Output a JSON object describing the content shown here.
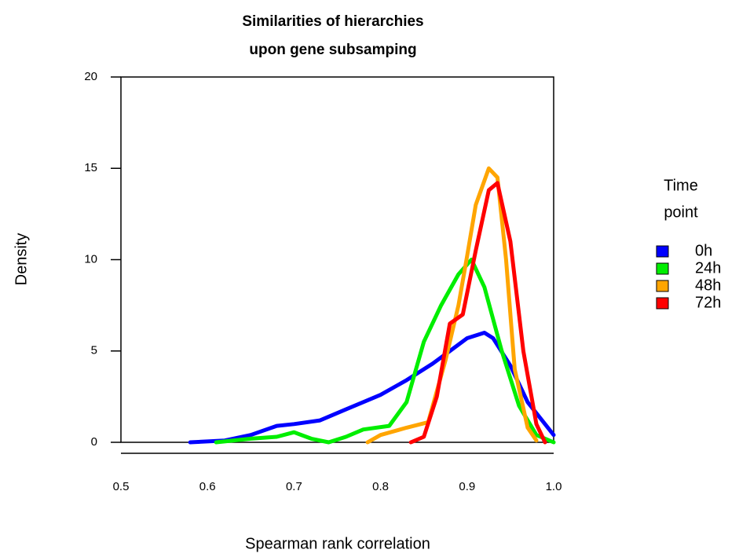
{
  "chart_data": {
    "type": "line",
    "title": [
      "Similarities of hierarchies",
      "upon gene subsamping"
    ],
    "x_label": "Spearman rank correlation",
    "y_label": "Density",
    "legend_title": [
      "Time",
      "point"
    ],
    "xlim": [
      0.5,
      1.0
    ],
    "ylim": [
      0,
      20
    ],
    "xticks": [
      0.5,
      0.6,
      0.7,
      0.8,
      0.9,
      {
        "value": 1,
        "label": "1.0"
      }
    ],
    "yticks": [
      0,
      5,
      10,
      15,
      20
    ],
    "series": [
      {
        "name": "0h",
        "color": "#0000ff",
        "x": [
          0.58,
          0.62,
          0.65,
          0.68,
          0.7,
          0.73,
          0.76,
          0.8,
          0.83,
          0.86,
          0.88,
          0.9,
          0.92,
          0.93,
          0.95,
          0.97,
          0.99,
          1.0
        ],
        "values": [
          0,
          0.1,
          0.4,
          0.9,
          1.0,
          1.2,
          1.8,
          2.6,
          3.4,
          4.3,
          5.0,
          5.7,
          6.0,
          5.7,
          4.2,
          2.2,
          1.0,
          0.4
        ]
      },
      {
        "name": "24h",
        "color": "#00ee00",
        "x": [
          0.61,
          0.65,
          0.68,
          0.7,
          0.72,
          0.74,
          0.76,
          0.78,
          0.81,
          0.83,
          0.85,
          0.87,
          0.89,
          0.905,
          0.92,
          0.94,
          0.96,
          0.98,
          1.0
        ],
        "values": [
          0,
          0.2,
          0.3,
          0.55,
          0.2,
          0,
          0.3,
          0.7,
          0.9,
          2.2,
          5.5,
          7.5,
          9.2,
          10.0,
          8.5,
          5.0,
          2.0,
          0.4,
          0
        ]
      },
      {
        "name": "48h",
        "color": "#ffa500",
        "x": [
          0.785,
          0.8,
          0.83,
          0.855,
          0.875,
          0.89,
          0.9,
          0.91,
          0.925,
          0.935,
          0.945,
          0.955,
          0.97,
          0.98
        ],
        "values": [
          0,
          0.4,
          0.8,
          1.1,
          4.5,
          7.5,
          10.2,
          13.0,
          15.0,
          14.5,
          10.0,
          4.0,
          0.8,
          0.1
        ]
      },
      {
        "name": "72h",
        "color": "#ff0000",
        "x": [
          0.835,
          0.85,
          0.865,
          0.88,
          0.895,
          0.91,
          0.925,
          0.935,
          0.95,
          0.965,
          0.98,
          0.99
        ],
        "values": [
          0,
          0.3,
          2.5,
          6.5,
          7.0,
          10.5,
          13.8,
          14.2,
          11.0,
          5.0,
          1.0,
          0
        ]
      }
    ]
  }
}
